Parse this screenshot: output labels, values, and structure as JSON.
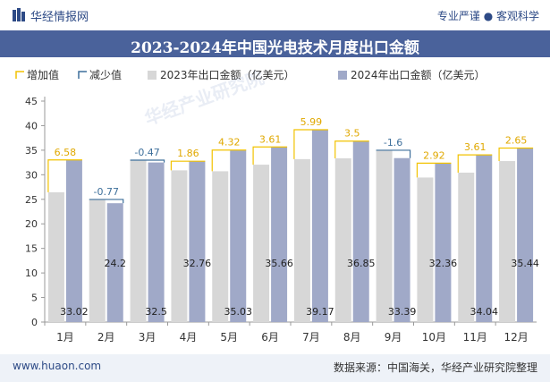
{
  "header": {
    "brand": "华经情报网",
    "tagline": "专业严谨 ● 客观科学"
  },
  "footer": {
    "url": "www.huaon.com",
    "source": "数据来源：中国海关，华经产业研究院整理"
  },
  "watermark": "华经产业研究院",
  "colors": {
    "increase": "#f2c200",
    "decrease": "#3d6f9b",
    "bar2023": "#d7d7d7",
    "bar2024": "#a0a9c8",
    "titlebar": "#4a629b"
  },
  "chart_data": {
    "type": "bar",
    "title": "2023-2024年中国光电技术月度出口金额",
    "categories": [
      "1月",
      "2月",
      "3月",
      "4月",
      "5月",
      "6月",
      "7月",
      "8月",
      "9月",
      "10月",
      "11月",
      "12月"
    ],
    "series": [
      {
        "name": "2023年出口金额（亿美元）",
        "values": [
          26.44,
          24.97,
          32.97,
          30.9,
          30.71,
          32.05,
          33.18,
          33.35,
          34.99,
          29.44,
          30.43,
          32.79
        ]
      },
      {
        "name": "2024年出口金额（亿美元）",
        "values": [
          33.02,
          24.2,
          32.5,
          32.76,
          35.03,
          35.66,
          39.17,
          36.85,
          33.39,
          32.36,
          34.04,
          35.44
        ]
      }
    ],
    "change_values": [
      "6.58",
      "-0.77",
      "-0.47",
      "1.86",
      "4.32",
      "3.61",
      "5.99",
      "3.5",
      "-1.6",
      "2.92",
      "3.61",
      "2.65"
    ],
    "legend": {
      "increase": "增加值",
      "decrease": "减少值",
      "placement": "top"
    },
    "ylim": [
      0,
      45
    ],
    "yticks": [
      "0",
      "5",
      "10",
      "15",
      "20",
      "25",
      "30",
      "35",
      "40",
      "45"
    ],
    "grid": false
  }
}
